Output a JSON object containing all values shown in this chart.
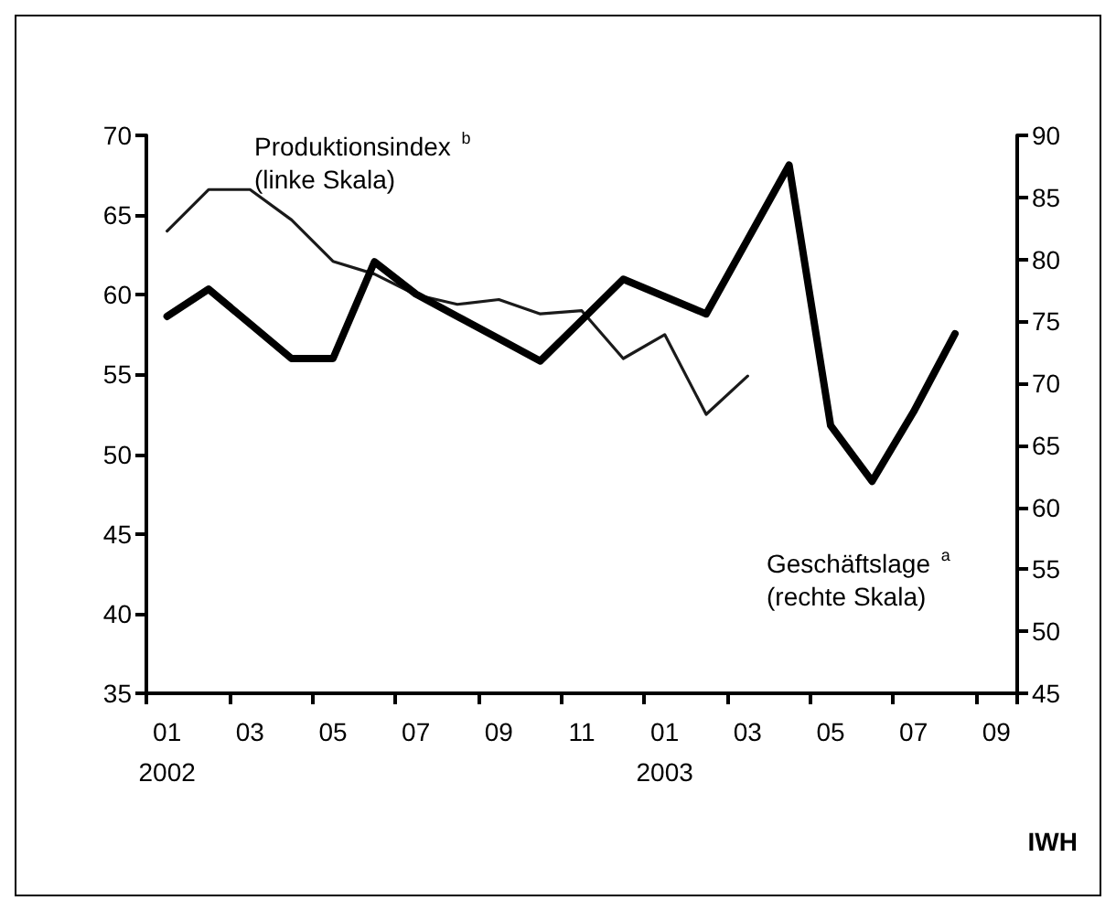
{
  "chart_data": {
    "type": "line",
    "categories": [
      "01\n2002",
      null,
      "03",
      null,
      "05",
      null,
      "07",
      null,
      "09",
      null,
      "11",
      null,
      "01\n2003",
      null,
      "03",
      null,
      "05",
      null,
      "07",
      null,
      "09"
    ],
    "series": [
      {
        "name": "Produktionsindex $^{b}$\n(linke Skala)",
        "color": "#1a1a1a",
        "values": [
          64.0,
          66.6,
          66.6,
          64.7,
          62.1,
          61.3,
          60.0,
          59.4,
          59.7,
          58.8,
          59.0,
          56.0,
          57.5,
          52.5,
          54.9,
          null,
          null,
          null,
          null,
          null,
          null
        ]
      },
      {
        "name": "Geschäftslage $^{a}$\n(rechte Skala)",
        "color": "#000000",
        "axis": "y2",
        "values": [
          75.4,
          77.6,
          74.8,
          72.0,
          72.0,
          79.8,
          77.2,
          75.4,
          73.6,
          71.8,
          75.1,
          78.4,
          77.0,
          75.6,
          81.6,
          87.6,
          66.6,
          62.1,
          67.7,
          74.0,
          null
        ]
      }
    ],
    "ylim": [
      35,
      70
    ],
    "yticks": [
      35,
      40,
      45,
      50,
      55,
      60,
      65,
      70
    ],
    "y2lim": [
      45,
      90
    ],
    "y2ticks": [
      45,
      50,
      55,
      60,
      65,
      70,
      75,
      80,
      85,
      90
    ],
    "marker": "none",
    "line_style": "solid",
    "grid": false,
    "annotations": [
      "IWH"
    ]
  }
}
